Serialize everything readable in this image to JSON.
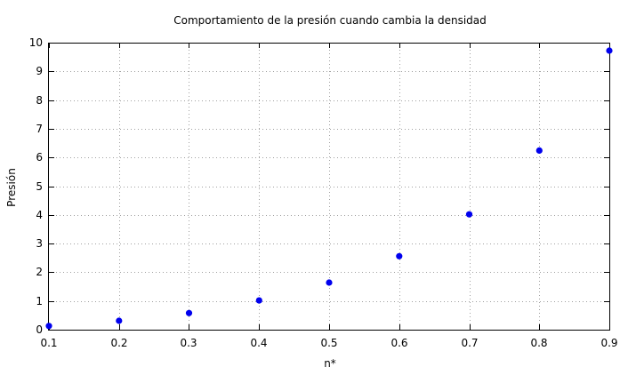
{
  "chart_data": {
    "type": "scatter",
    "title": "Comportamiento de la presión cuando cambia la densidad",
    "xlabel": "n*",
    "ylabel": "Presión",
    "xlim": [
      0.1,
      0.9
    ],
    "ylim": [
      0,
      10
    ],
    "xticks": [
      "0.1",
      "0.2",
      "0.3",
      "0.4",
      "0.5",
      "0.6",
      "0.7",
      "0.8",
      "0.9"
    ],
    "yticks": [
      "0",
      "1",
      "2",
      "3",
      "4",
      "5",
      "6",
      "7",
      "8",
      "9",
      "10"
    ],
    "grid": true,
    "marker_color": "#0000ee",
    "series": [
      {
        "x": [
          0.1,
          0.2,
          0.3,
          0.4,
          0.5,
          0.6,
          0.7,
          0.8,
          0.9
        ],
        "y": [
          0.13,
          0.31,
          0.58,
          1.02,
          1.64,
          2.56,
          4.02,
          6.24,
          9.72
        ]
      }
    ]
  }
}
